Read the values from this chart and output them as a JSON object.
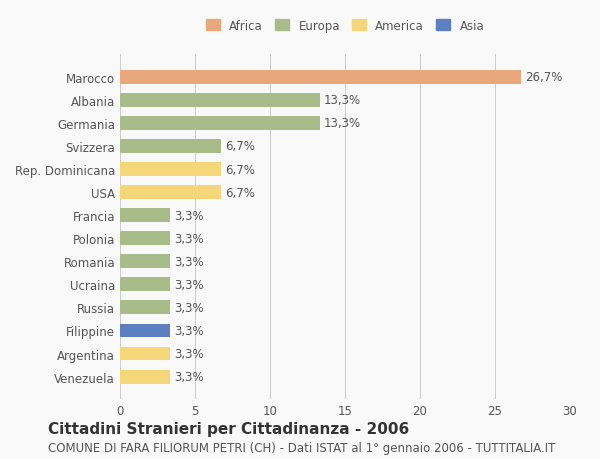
{
  "categories": [
    "Venezuela",
    "Argentina",
    "Filippine",
    "Russia",
    "Ucraina",
    "Romania",
    "Polonia",
    "Francia",
    "USA",
    "Rep. Dominicana",
    "Svizzera",
    "Germania",
    "Albania",
    "Marocco"
  ],
  "values": [
    3.3,
    3.3,
    3.3,
    3.3,
    3.3,
    3.3,
    3.3,
    3.3,
    6.7,
    6.7,
    6.7,
    13.3,
    13.3,
    26.7
  ],
  "colors": [
    "#f5d77a",
    "#f5d77a",
    "#5b7fbf",
    "#a8bc8a",
    "#a8bc8a",
    "#a8bc8a",
    "#a8bc8a",
    "#a8bc8a",
    "#f5d77a",
    "#f5d77a",
    "#a8bc8a",
    "#a8bc8a",
    "#a8bc8a",
    "#e8a87c"
  ],
  "labels": [
    "3,3%",
    "3,3%",
    "3,3%",
    "3,3%",
    "3,3%",
    "3,3%",
    "3,3%",
    "3,3%",
    "6,7%",
    "6,7%",
    "6,7%",
    "13,3%",
    "13,3%",
    "26,7%"
  ],
  "legend": {
    "Africa": "#e8a87c",
    "Europa": "#a8bc8a",
    "America": "#f5d77a",
    "Asia": "#5b7fbf"
  },
  "xlim": [
    0,
    30
  ],
  "xticks": [
    0,
    5,
    10,
    15,
    20,
    25,
    30
  ],
  "title": "Cittadini Stranieri per Cittadinanza - 2006",
  "subtitle": "COMUNE DI FARA FILIORUM PETRI (CH) - Dati ISTAT al 1° gennaio 2006 - TUTTITALIA.IT",
  "background_color": "#f9f9f9",
  "grid_color": "#cccccc",
  "bar_height": 0.6,
  "label_fontsize": 8.5,
  "title_fontsize": 11,
  "subtitle_fontsize": 8.5
}
